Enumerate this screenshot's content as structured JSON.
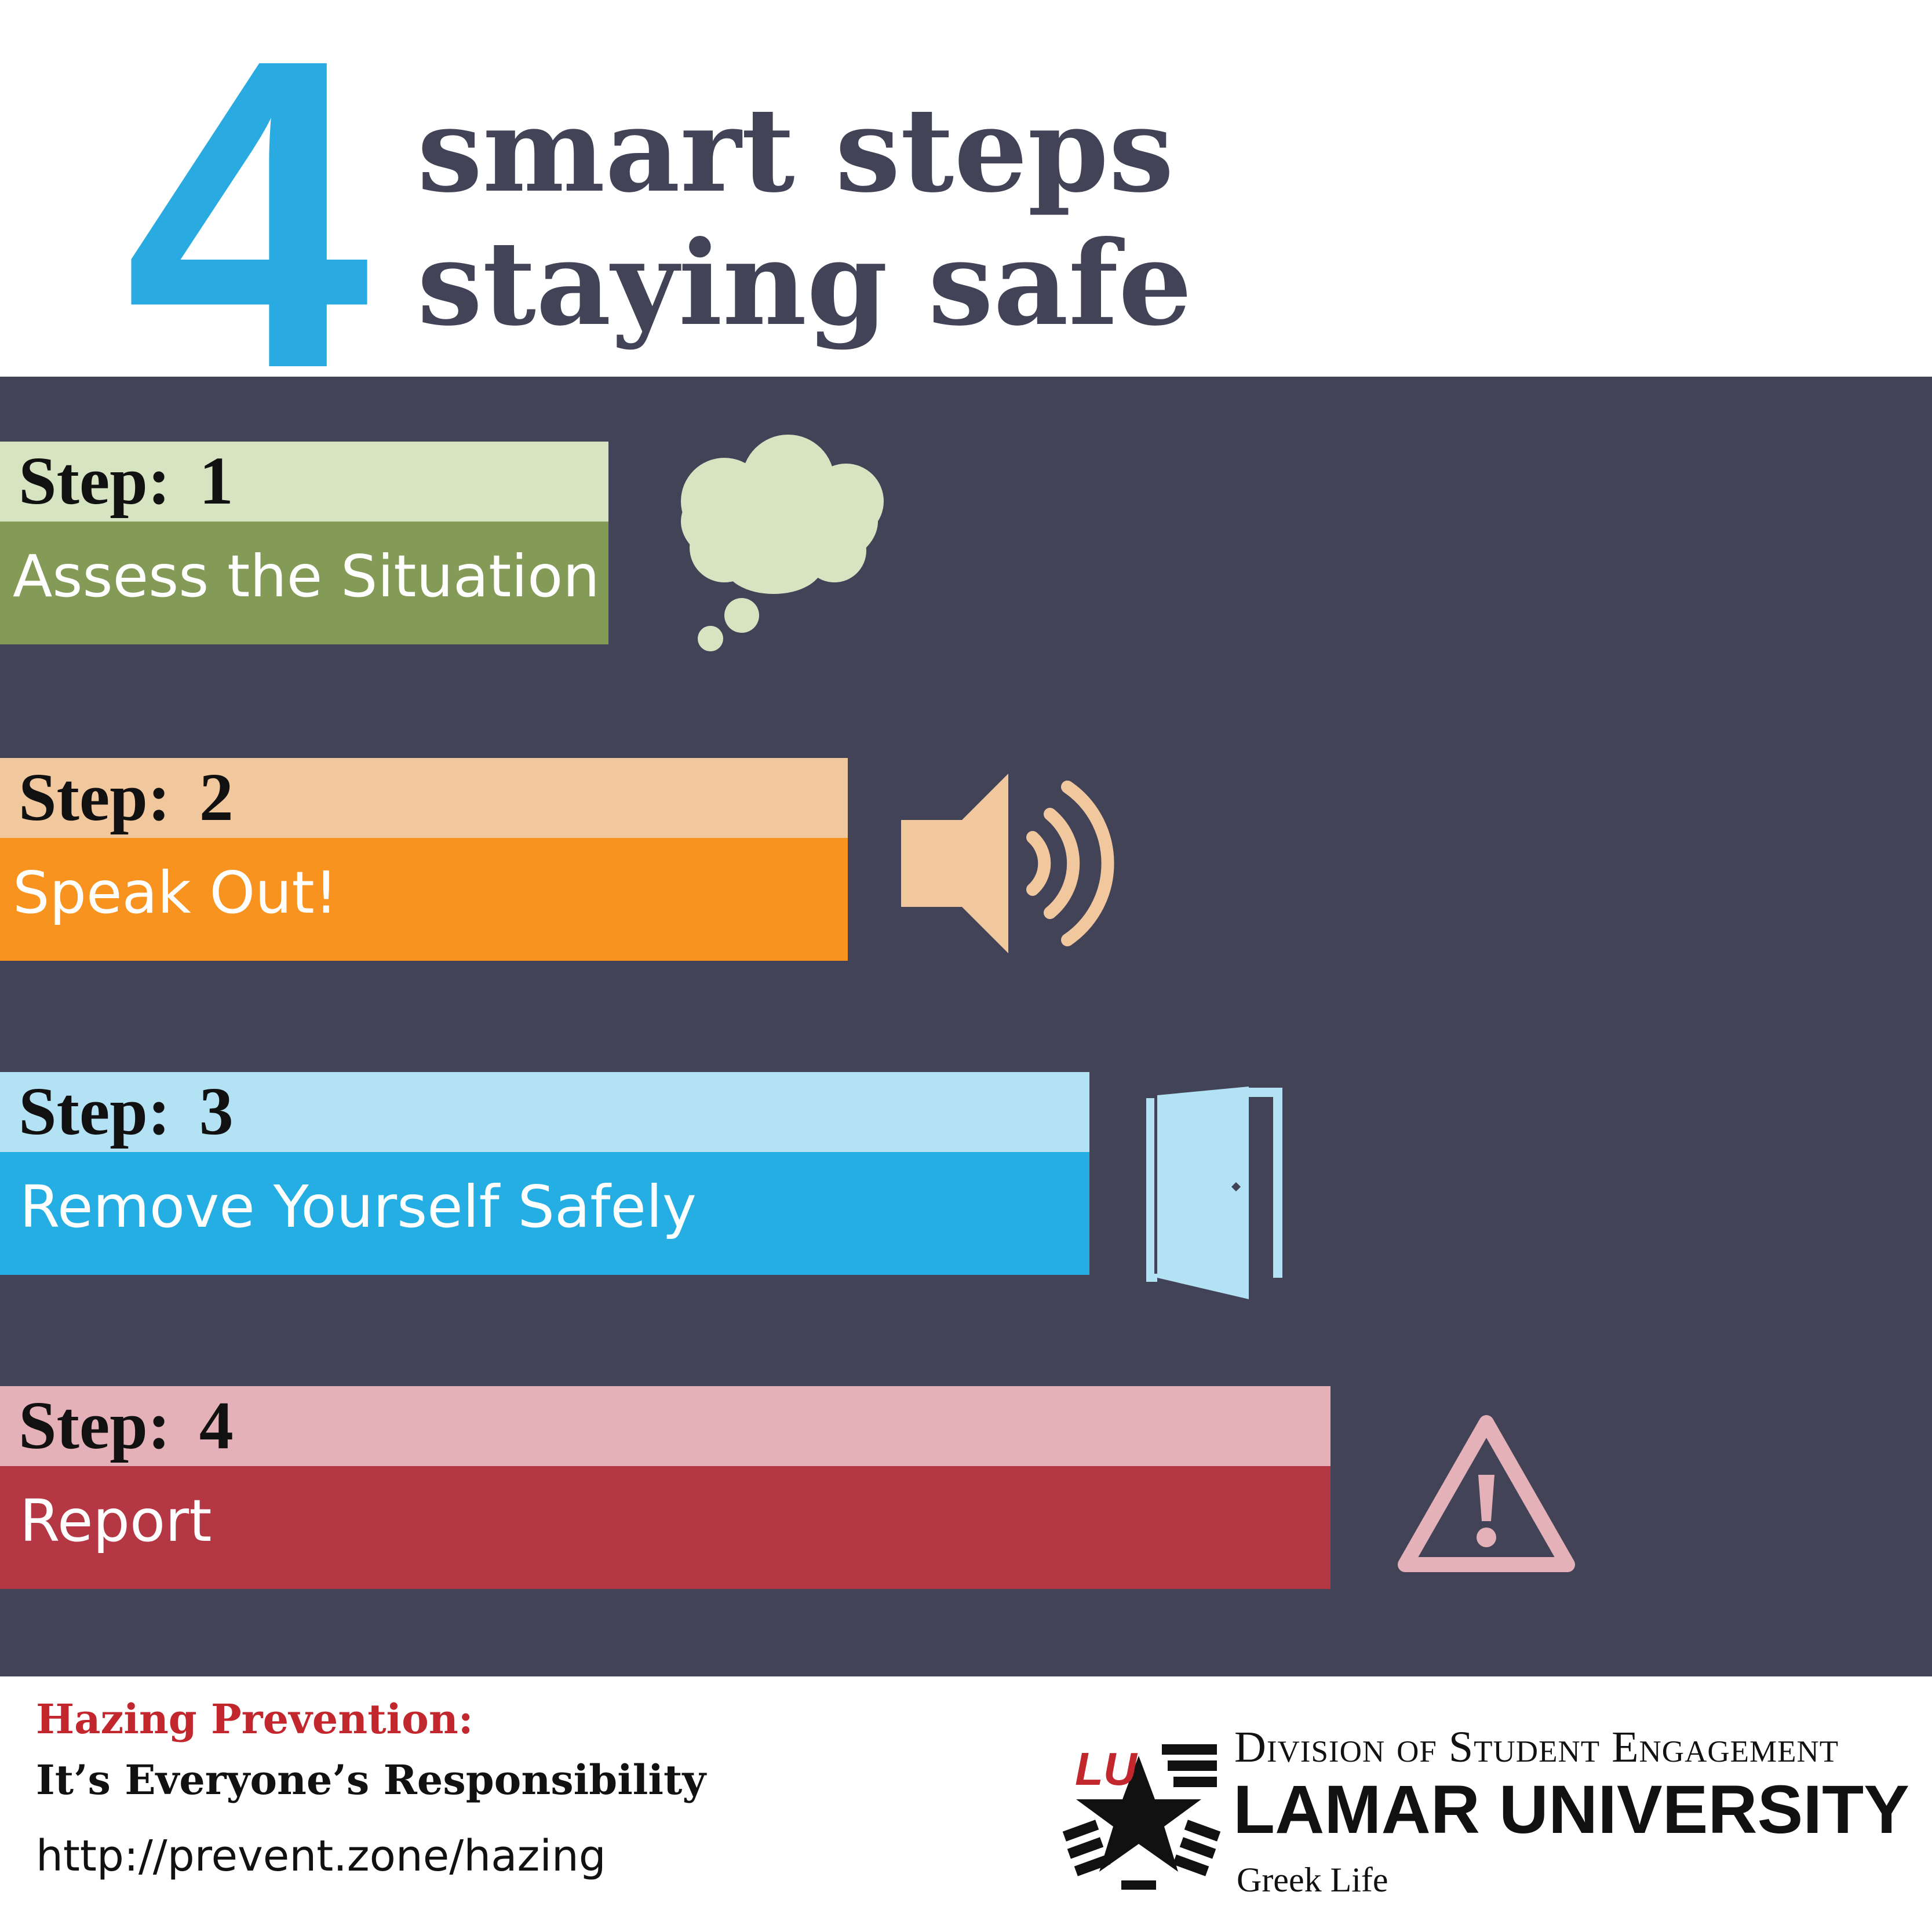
{
  "header": {
    "number": "4",
    "title_line1": "smart steps",
    "title_line2": "staying safe"
  },
  "steps": [
    {
      "label": "Step: 1",
      "text": "Assess the Situation",
      "light": "#d7e4c2",
      "dark": "#839b57",
      "icon": "thought-cloud-icon"
    },
    {
      "label": "Step: 2",
      "text": "Speak Out!",
      "light": "#f1c89e",
      "dark": "#f7931e",
      "icon": "speaker-icon"
    },
    {
      "label": "Step: 3",
      "text": "Remove Yourself Safely",
      "light": "#b3e2f5",
      "dark": "#25aee3",
      "icon": "door-icon"
    },
    {
      "label": "Step: 4",
      "text": "Report",
      "light": "#e4b1b8",
      "dark": "#b63744",
      "icon": "warning-icon"
    }
  ],
  "footer": {
    "title": "Hazing Prevention:",
    "subtitle": "It’s Everyone’s Responsibility",
    "url": "http://prevent.zone/hazing",
    "division": "Division of Student Engagement",
    "university": "LAMAR UNIVERSITY",
    "department": "Greek Life",
    "logo_text": "LU"
  },
  "colors": {
    "panel": "#434358",
    "accent_blue": "#29abe2",
    "title": "#434358",
    "footer_red": "#c1272d"
  }
}
